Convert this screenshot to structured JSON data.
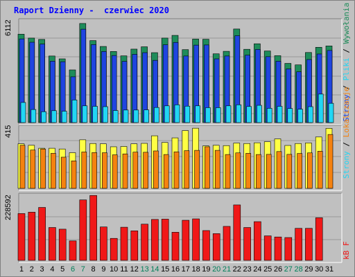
{
  "title": "Raport Dzienny -  czerwiec 2020",
  "colors": {
    "background": "#c0c0c0",
    "title": "#0000ff",
    "visits": "#1e8c5a",
    "pages": "#1f45e0",
    "files": "#22d6f4",
    "hosts": "#ffff44",
    "hits": "#f5820f",
    "kbytes": "#f01818",
    "weekday": "#000000",
    "weekend": "#00805a"
  },
  "chart_data": [
    {
      "type": "bar",
      "panel": "top",
      "max_label": "6112",
      "ylim": [
        0,
        6112
      ],
      "ylabel_parts": [
        "Wywołania",
        "Pliki",
        "Strony"
      ],
      "ylabel_colors": [
        "#1e8c5a",
        "#22d6f4",
        "#1f45e0"
      ],
      "categories": [
        "1",
        "2",
        "3",
        "4",
        "5",
        "6",
        "7",
        "8",
        "9",
        "10",
        "11",
        "12",
        "13",
        "14",
        "15",
        "16",
        "17",
        "18",
        "19",
        "20",
        "21",
        "22",
        "23",
        "24",
        "25",
        "26",
        "27",
        "28",
        "29",
        "30",
        "31"
      ],
      "series": [
        {
          "name": "Wywołania",
          "values": [
            5270,
            5040,
            4960,
            3970,
            3800,
            3140,
            5910,
            4890,
            4540,
            4240,
            3980,
            4380,
            4520,
            4170,
            5040,
            5200,
            4350,
            4980,
            4970,
            4100,
            4250,
            5580,
            4370,
            4700,
            4270,
            3990,
            3530,
            3440,
            4180,
            4490,
            4570
          ]
        },
        {
          "name": "Strony",
          "values": [
            4990,
            4790,
            4680,
            3660,
            3630,
            2730,
            5570,
            4650,
            4240,
            4000,
            3650,
            4070,
            4170,
            3710,
            4640,
            4780,
            3970,
            4620,
            4630,
            3800,
            3970,
            5180,
            4020,
            4360,
            3930,
            3660,
            3200,
            3030,
            3760,
            4090,
            4300
          ]
        },
        {
          "name": "Pliki",
          "values": [
            1200,
            780,
            650,
            710,
            680,
            1350,
            1000,
            970,
            950,
            720,
            750,
            750,
            760,
            900,
            1000,
            1060,
            980,
            1000,
            890,
            890,
            1000,
            1060,
            960,
            1030,
            850,
            970,
            840,
            800,
            950,
            1700,
            1150
          ]
        }
      ]
    },
    {
      "type": "bar",
      "panel": "middle",
      "max_label": "415",
      "ylim": [
        0,
        415
      ],
      "ylabel_parts": [
        "Lokalizacje",
        "Strony"
      ],
      "ylabel_colors": [
        "#f5820f",
        "#22d6f4"
      ],
      "categories": [
        "1",
        "2",
        "3",
        "4",
        "5",
        "6",
        "7",
        "8",
        "9",
        "10",
        "11",
        "12",
        "13",
        "14",
        "15",
        "16",
        "17",
        "18",
        "19",
        "20",
        "21",
        "22",
        "23",
        "24",
        "25",
        "26",
        "27",
        "28",
        "29",
        "30",
        "31"
      ],
      "series": [
        {
          "name": "Lokalizacje",
          "values": [
            300,
            290,
            270,
            270,
            265,
            240,
            327,
            302,
            300,
            280,
            282,
            300,
            303,
            354,
            309,
            340,
            389,
            405,
            286,
            290,
            288,
            305,
            302,
            307,
            314,
            333,
            289,
            302,
            306,
            346,
            404
          ]
        },
        {
          "name": "Strony",
          "values": [
            290,
            258,
            265,
            236,
            210,
            185,
            245,
            241,
            240,
            226,
            232,
            244,
            243,
            252,
            228,
            246,
            254,
            256,
            280,
            256,
            228,
            239,
            236,
            228,
            229,
            248,
            229,
            235,
            239,
            250,
            363
          ]
        }
      ]
    },
    {
      "type": "bar",
      "panel": "bottom",
      "max_label": "228592",
      "ylim": [
        0,
        228592
      ],
      "ylabel_parts": [
        "kB F"
      ],
      "ylabel_colors": [
        "#f01818"
      ],
      "categories": [
        "1",
        "2",
        "3",
        "4",
        "5",
        "6",
        "7",
        "8",
        "9",
        "10",
        "11",
        "12",
        "13",
        "14",
        "15",
        "16",
        "17",
        "18",
        "19",
        "20",
        "21",
        "22",
        "23",
        "24",
        "25",
        "26",
        "27",
        "28",
        "29",
        "30",
        "31"
      ],
      "series": [
        {
          "name": "kB F",
          "values": [
            168000,
            173000,
            190000,
            118000,
            112000,
            70000,
            217000,
            233000,
            120000,
            79000,
            119000,
            106000,
            130000,
            147000,
            148000,
            101000,
            144000,
            149000,
            107000,
            96000,
            122000,
            199000,
            118000,
            139000,
            88000,
            84000,
            82000,
            115000,
            115000,
            153000,
            0
          ]
        }
      ]
    }
  ],
  "x_labels": [
    {
      "day": "1",
      "weekend": false
    },
    {
      "day": "2",
      "weekend": false
    },
    {
      "day": "3",
      "weekend": false
    },
    {
      "day": "4",
      "weekend": false
    },
    {
      "day": "5",
      "weekend": false
    },
    {
      "day": "6",
      "weekend": true
    },
    {
      "day": "7",
      "weekend": true
    },
    {
      "day": "8",
      "weekend": false
    },
    {
      "day": "9",
      "weekend": false
    },
    {
      "day": "10",
      "weekend": false
    },
    {
      "day": "11",
      "weekend": false
    },
    {
      "day": "12",
      "weekend": false
    },
    {
      "day": "13",
      "weekend": true
    },
    {
      "day": "14",
      "weekend": true
    },
    {
      "day": "15",
      "weekend": false
    },
    {
      "day": "16",
      "weekend": false
    },
    {
      "day": "17",
      "weekend": false
    },
    {
      "day": "18",
      "weekend": false
    },
    {
      "day": "19",
      "weekend": false
    },
    {
      "day": "20",
      "weekend": true
    },
    {
      "day": "21",
      "weekend": true
    },
    {
      "day": "22",
      "weekend": false
    },
    {
      "day": "23",
      "weekend": false
    },
    {
      "day": "24",
      "weekend": false
    },
    {
      "day": "25",
      "weekend": false
    },
    {
      "day": "26",
      "weekend": false
    },
    {
      "day": "27",
      "weekend": true
    },
    {
      "day": "28",
      "weekend": true
    },
    {
      "day": "29",
      "weekend": false
    },
    {
      "day": "30",
      "weekend": false
    },
    {
      "day": "31",
      "weekend": false
    }
  ]
}
